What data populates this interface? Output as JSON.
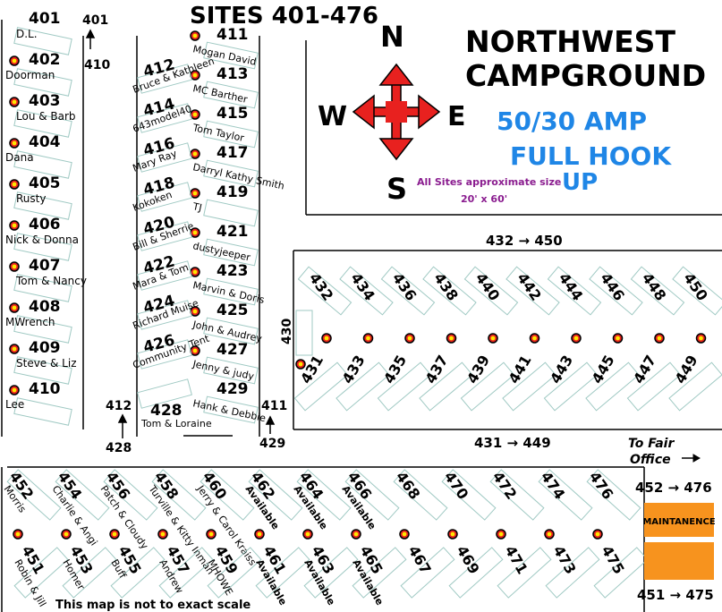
{
  "map_title": "SITES 401-476",
  "campground_title_line1": "NORTHWEST",
  "campground_title_line2": "CAMPGROUND",
  "amp_label": "50/30 AMP",
  "hookup_line1": "FULL HOOK",
  "hookup_line2": "UP",
  "size_note_line1": "All Sites approximate size",
  "size_note_line2": "20' x 60'",
  "compass": {
    "n": "N",
    "s": "S",
    "e": "E",
    "w": "W"
  },
  "range_labels": {
    "r432_450": "432 → 450",
    "r431_449": "431 → 449",
    "r452_476": "452 → 476",
    "r451_475": "451 → 475"
  },
  "markers": {
    "m401": "401",
    "m410": "410",
    "m411": "411",
    "m412": "412",
    "m428": "428",
    "m429": "429",
    "m430": "430"
  },
  "fair_office_line1": "To Fair",
  "fair_office_line2": "Office",
  "maintenance_label": "MAINTANENCE",
  "disclaimer": "This map is not to exact scale",
  "available_color": "#e0171d",
  "compass_color": "#e8211f",
  "amp_color": "#1f86e6",
  "note_color": "#8a1c8f",
  "sites_left": [
    {
      "num": "401",
      "name": "D.L."
    },
    {
      "num": "402",
      "name": "Doorman"
    },
    {
      "num": "403",
      "name": "Lou & Barb"
    },
    {
      "num": "404",
      "name": "Dana"
    },
    {
      "num": "405",
      "name": "Rusty"
    },
    {
      "num": "406",
      "name": "Nick & Donna"
    },
    {
      "num": "407",
      "name": "Tom & Nancy"
    },
    {
      "num": "408",
      "name": "MWrench"
    },
    {
      "num": "409",
      "name": "Steve & Liz"
    },
    {
      "num": "410",
      "name": "Lee"
    }
  ],
  "sites_right_col": [
    {
      "num": "411",
      "name": "Mogan David"
    },
    {
      "num": "413",
      "name": "MC Barther"
    },
    {
      "num": "415",
      "name": "Tom Taylor"
    },
    {
      "num": "417",
      "name": "Darryl Kathy Smith"
    },
    {
      "num": "419",
      "name": "TJ"
    },
    {
      "num": "421",
      "name": "dustyjeeper"
    },
    {
      "num": "423",
      "name": "Marvin & Doris"
    },
    {
      "num": "425",
      "name": "John & Audrey"
    },
    {
      "num": "427",
      "name": "Jenny & judy"
    },
    {
      "num": "429",
      "name": "Hank & Debbie"
    }
  ],
  "sites_left_col": [
    {
      "num": "412",
      "name": "Bruce & Kathleen"
    },
    {
      "num": "414",
      "name": "643model40"
    },
    {
      "num": "416",
      "name": "Mary Ray"
    },
    {
      "num": "418",
      "name": "Kokoken"
    },
    {
      "num": "420",
      "name": "Bill & Sherrie"
    },
    {
      "num": "422",
      "name": "Mara & Tom"
    },
    {
      "num": "424",
      "name": "Richard Muise"
    },
    {
      "num": "426",
      "name": "Community Tent"
    },
    {
      "num": "428",
      "name": "Tom & Loraine"
    }
  ],
  "sites_block_top": [
    "432",
    "434",
    "436",
    "438",
    "440",
    "442",
    "444",
    "446",
    "448",
    "450"
  ],
  "sites_block_bottom": [
    "431",
    "433",
    "435",
    "437",
    "439",
    "441",
    "443",
    "445",
    "447",
    "449"
  ],
  "sites_south_top": [
    {
      "num": "452",
      "name": "Morris"
    },
    {
      "num": "454",
      "name": "Charlie & Angi"
    },
    {
      "num": "456",
      "name": "Patch & Cloudy"
    },
    {
      "num": "458",
      "name": "Turville & Kitty Inman"
    },
    {
      "num": "460",
      "name": "Jerry & Carol Kraiss"
    },
    {
      "num": "462",
      "name": "Available"
    },
    {
      "num": "464",
      "name": "Available"
    },
    {
      "num": "466",
      "name": "Available"
    },
    {
      "num": "468",
      "name": ""
    },
    {
      "num": "470",
      "name": ""
    },
    {
      "num": "472",
      "name": ""
    },
    {
      "num": "474",
      "name": ""
    },
    {
      "num": "476",
      "name": ""
    }
  ],
  "sites_south_bottom": [
    {
      "num": "451",
      "name": "Robin & Jill"
    },
    {
      "num": "453",
      "name": "Homer"
    },
    {
      "num": "455",
      "name": "Buff"
    },
    {
      "num": "457",
      "name": "Andrew"
    },
    {
      "num": "459",
      "name": "MHOWE"
    },
    {
      "num": "461",
      "name": "Available"
    },
    {
      "num": "463",
      "name": "Available"
    },
    {
      "num": "465",
      "name": "Available"
    },
    {
      "num": "467",
      "name": ""
    },
    {
      "num": "469",
      "name": ""
    },
    {
      "num": "471",
      "name": ""
    },
    {
      "num": "473",
      "name": ""
    },
    {
      "num": "475",
      "name": ""
    }
  ]
}
